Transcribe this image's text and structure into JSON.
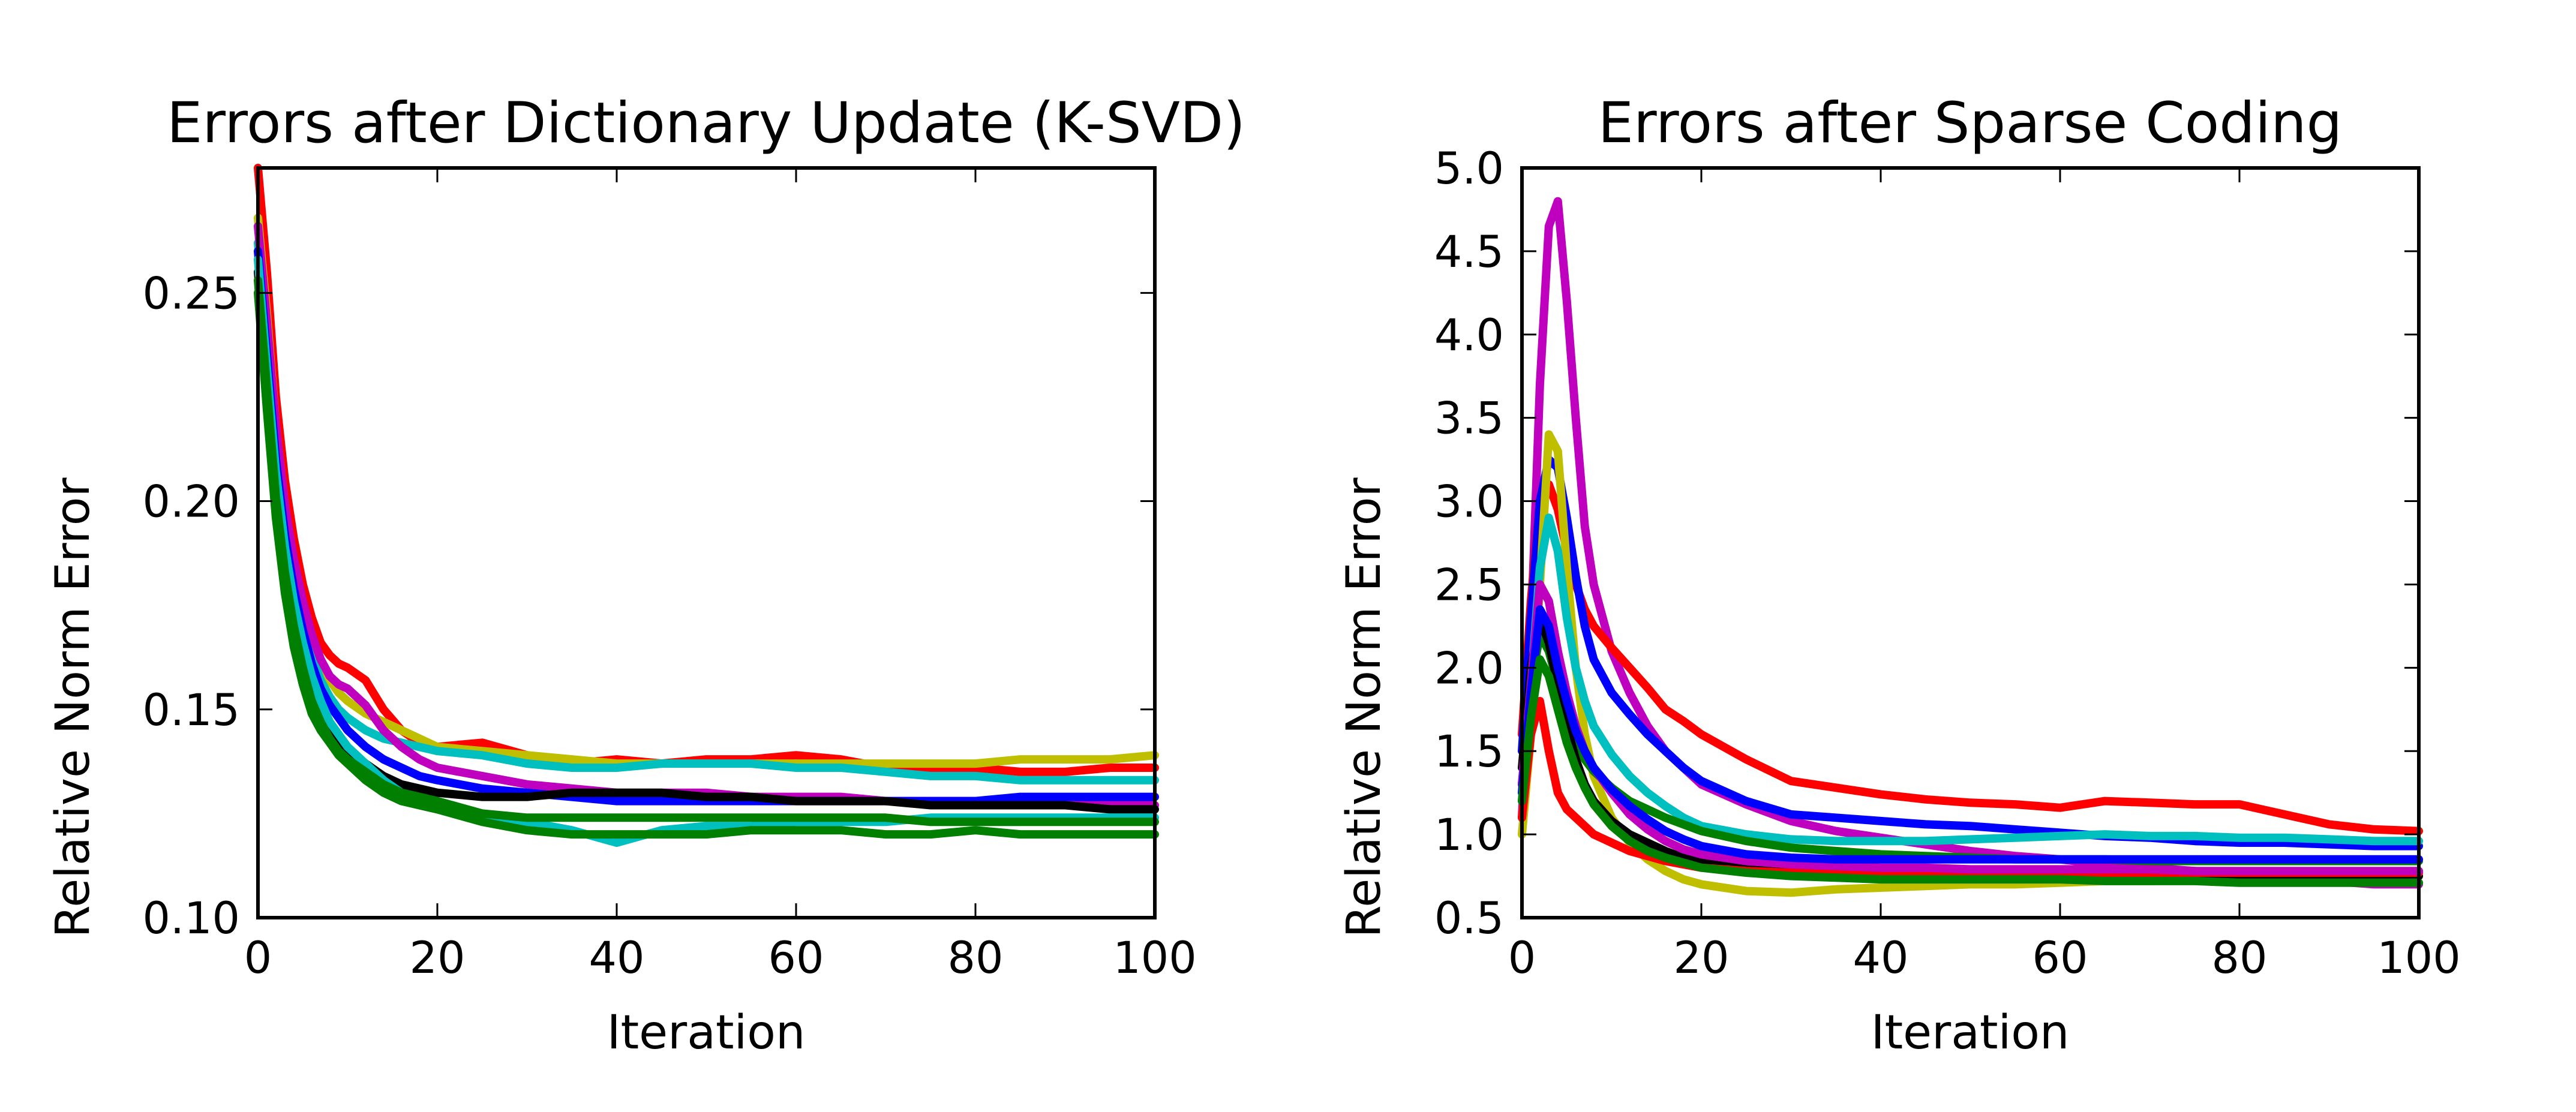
{
  "chart_data": [
    {
      "type": "line",
      "title": "Errors after Dictionary Update (K-SVD)",
      "xlabel": "Iteration",
      "ylabel": "Relative Norm Error",
      "xlim": [
        0,
        100
      ],
      "ylim": [
        0.1,
        0.28
      ],
      "xticks": [
        "0",
        "20",
        "40",
        "60",
        "80",
        "100"
      ],
      "yticks": [
        "0.10",
        "0.15",
        "0.20",
        "0.25"
      ],
      "grid": false,
      "x": [
        0,
        1,
        2,
        3,
        4,
        5,
        6,
        7,
        8,
        9,
        10,
        12,
        14,
        16,
        18,
        20,
        25,
        30,
        35,
        40,
        45,
        50,
        55,
        60,
        65,
        70,
        75,
        80,
        85,
        90,
        95,
        100
      ],
      "series": [
        {
          "color": "#ff0000",
          "values": [
            0.28,
            0.255,
            0.225,
            0.205,
            0.191,
            0.18,
            0.172,
            0.166,
            0.163,
            0.161,
            0.16,
            0.157,
            0.15,
            0.145,
            0.142,
            0.141,
            0.142,
            0.139,
            0.137,
            0.138,
            0.137,
            0.138,
            0.138,
            0.139,
            0.138,
            0.136,
            0.136,
            0.136,
            0.135,
            0.135,
            0.136,
            0.136
          ]
        },
        {
          "color": "#bfbf00",
          "values": [
            0.268,
            0.245,
            0.218,
            0.199,
            0.185,
            0.175,
            0.167,
            0.161,
            0.157,
            0.154,
            0.152,
            0.149,
            0.147,
            0.145,
            0.143,
            0.141,
            0.14,
            0.139,
            0.138,
            0.137,
            0.137,
            0.137,
            0.137,
            0.137,
            0.137,
            0.137,
            0.137,
            0.137,
            0.138,
            0.138,
            0.138,
            0.139
          ]
        },
        {
          "color": "#00bfbf",
          "values": [
            0.262,
            0.238,
            0.213,
            0.194,
            0.181,
            0.171,
            0.163,
            0.157,
            0.153,
            0.15,
            0.148,
            0.145,
            0.143,
            0.142,
            0.141,
            0.14,
            0.139,
            0.137,
            0.136,
            0.136,
            0.137,
            0.137,
            0.137,
            0.136,
            0.136,
            0.135,
            0.134,
            0.134,
            0.133,
            0.133,
            0.133,
            0.133
          ]
        },
        {
          "color": "#bf00bf",
          "values": [
            0.266,
            0.243,
            0.218,
            0.199,
            0.186,
            0.176,
            0.168,
            0.162,
            0.158,
            0.156,
            0.155,
            0.151,
            0.145,
            0.141,
            0.138,
            0.136,
            0.134,
            0.132,
            0.131,
            0.13,
            0.13,
            0.13,
            0.129,
            0.129,
            0.129,
            0.128,
            0.128,
            0.128,
            0.128,
            0.128,
            0.127,
            0.127
          ]
        },
        {
          "color": "#0000ff",
          "values": [
            0.26,
            0.235,
            0.21,
            0.192,
            0.179,
            0.169,
            0.161,
            0.155,
            0.151,
            0.148,
            0.145,
            0.141,
            0.138,
            0.136,
            0.134,
            0.133,
            0.131,
            0.13,
            0.129,
            0.128,
            0.128,
            0.128,
            0.128,
            0.128,
            0.128,
            0.128,
            0.128,
            0.128,
            0.129,
            0.129,
            0.129,
            0.129
          ]
        },
        {
          "color": "#000000",
          "values": [
            0.255,
            0.228,
            0.203,
            0.185,
            0.172,
            0.162,
            0.155,
            0.149,
            0.145,
            0.142,
            0.14,
            0.137,
            0.134,
            0.132,
            0.131,
            0.13,
            0.129,
            0.129,
            0.13,
            0.13,
            0.13,
            0.129,
            0.129,
            0.128,
            0.128,
            0.128,
            0.127,
            0.127,
            0.127,
            0.127,
            0.126,
            0.126
          ]
        },
        {
          "color": "#00bfbf",
          "values": [
            0.258,
            0.232,
            0.207,
            0.189,
            0.176,
            0.166,
            0.158,
            0.152,
            0.147,
            0.144,
            0.141,
            0.137,
            0.133,
            0.13,
            0.128,
            0.127,
            0.125,
            0.123,
            0.121,
            0.118,
            0.121,
            0.122,
            0.122,
            0.123,
            0.123,
            0.123,
            0.124,
            0.124,
            0.124,
            0.124,
            0.124,
            0.124
          ]
        },
        {
          "color": "#007f00",
          "values": [
            0.25,
            0.222,
            0.196,
            0.178,
            0.165,
            0.156,
            0.149,
            0.145,
            0.142,
            0.139,
            0.137,
            0.133,
            0.13,
            0.128,
            0.127,
            0.126,
            0.123,
            0.121,
            0.12,
            0.12,
            0.12,
            0.12,
            0.121,
            0.121,
            0.121,
            0.12,
            0.12,
            0.121,
            0.12,
            0.12,
            0.12,
            0.12
          ]
        },
        {
          "color": "#007f00",
          "values": [
            0.253,
            0.227,
            0.201,
            0.183,
            0.17,
            0.16,
            0.152,
            0.147,
            0.143,
            0.14,
            0.138,
            0.135,
            0.132,
            0.13,
            0.129,
            0.128,
            0.125,
            0.124,
            0.124,
            0.124,
            0.124,
            0.124,
            0.124,
            0.124,
            0.124,
            0.124,
            0.123,
            0.123,
            0.123,
            0.123,
            0.123,
            0.123
          ]
        }
      ]
    },
    {
      "type": "line",
      "title": "Errors after Sparse Coding",
      "xlabel": "Iteration",
      "ylabel": "Relative Norm Error",
      "xlim": [
        0,
        100
      ],
      "ylim": [
        0.5,
        5.0
      ],
      "xticks": [
        "0",
        "20",
        "40",
        "60",
        "80",
        "100"
      ],
      "yticks": [
        "0.5",
        "1.0",
        "1.5",
        "2.0",
        "2.5",
        "3.0",
        "3.5",
        "4.0",
        "4.5",
        "5.0"
      ],
      "grid": false,
      "x": [
        0,
        1,
        2,
        3,
        4,
        5,
        6,
        7,
        8,
        10,
        12,
        14,
        16,
        18,
        20,
        25,
        30,
        35,
        40,
        45,
        50,
        55,
        60,
        65,
        70,
        75,
        80,
        85,
        90,
        95,
        100
      ],
      "series": [
        {
          "color": "#bf00bf",
          "values": [
            1.1,
            2.2,
            3.7,
            4.65,
            4.8,
            4.2,
            3.5,
            2.85,
            2.5,
            2.1,
            1.85,
            1.65,
            1.5,
            1.4,
            1.3,
            1.18,
            1.08,
            1.02,
            0.98,
            0.94,
            0.9,
            0.87,
            0.85,
            0.82,
            0.8,
            0.78,
            0.76,
            0.74,
            0.72,
            0.7,
            0.7
          ]
        },
        {
          "color": "#ff0000",
          "values": [
            1.6,
            2.4,
            3.0,
            3.1,
            2.95,
            2.7,
            2.5,
            2.35,
            2.25,
            2.12,
            2.0,
            1.88,
            1.75,
            1.68,
            1.6,
            1.45,
            1.32,
            1.28,
            1.24,
            1.21,
            1.19,
            1.18,
            1.16,
            1.2,
            1.19,
            1.18,
            1.18,
            1.12,
            1.06,
            1.03,
            1.02
          ]
        },
        {
          "color": "#0000ff",
          "values": [
            1.5,
            2.3,
            3.0,
            3.25,
            3.2,
            2.9,
            2.55,
            2.25,
            2.05,
            1.85,
            1.72,
            1.6,
            1.5,
            1.4,
            1.32,
            1.2,
            1.12,
            1.1,
            1.08,
            1.06,
            1.05,
            1.03,
            1.01,
            0.99,
            0.98,
            0.96,
            0.95,
            0.95,
            0.94,
            0.93,
            0.93
          ]
        },
        {
          "color": "#bfbf00",
          "values": [
            1.0,
            1.6,
            2.5,
            3.4,
            3.3,
            2.6,
            2.0,
            1.6,
            1.35,
            1.1,
            0.95,
            0.85,
            0.78,
            0.73,
            0.7,
            0.66,
            0.65,
            0.67,
            0.68,
            0.69,
            0.7,
            0.7,
            0.71,
            0.72,
            0.72,
            0.73,
            0.73,
            0.73,
            0.74,
            0.74,
            0.75
          ]
        },
        {
          "color": "#00bfbf",
          "values": [
            1.2,
            1.9,
            2.6,
            2.9,
            2.7,
            2.3,
            2.0,
            1.8,
            1.65,
            1.48,
            1.35,
            1.25,
            1.17,
            1.1,
            1.05,
            1.0,
            0.97,
            0.96,
            0.96,
            0.96,
            0.97,
            0.98,
            0.99,
            1.0,
            0.99,
            0.99,
            0.98,
            0.98,
            0.97,
            0.96,
            0.96
          ]
        },
        {
          "color": "#007f00",
          "values": [
            1.3,
            1.9,
            2.2,
            2.1,
            1.9,
            1.7,
            1.55,
            1.45,
            1.38,
            1.28,
            1.2,
            1.15,
            1.1,
            1.06,
            1.02,
            0.96,
            0.92,
            0.9,
            0.88,
            0.87,
            0.86,
            0.85,
            0.85,
            0.85,
            0.84,
            0.84,
            0.84,
            0.84,
            0.84,
            0.84,
            0.84
          ]
        },
        {
          "color": "#000000",
          "values": [
            1.4,
            2.0,
            2.3,
            2.15,
            1.9,
            1.65,
            1.45,
            1.3,
            1.2,
            1.08,
            1.0,
            0.95,
            0.9,
            0.86,
            0.83,
            0.79,
            0.77,
            0.76,
            0.75,
            0.75,
            0.75,
            0.75,
            0.75,
            0.75,
            0.75,
            0.75,
            0.75,
            0.75,
            0.75,
            0.75,
            0.75
          ]
        },
        {
          "color": "#ff0000",
          "values": [
            1.1,
            1.6,
            1.8,
            1.5,
            1.25,
            1.15,
            1.1,
            1.05,
            1.0,
            0.95,
            0.9,
            0.87,
            0.84,
            0.82,
            0.8,
            0.78,
            0.77,
            0.77,
            0.77,
            0.77,
            0.77,
            0.77,
            0.77,
            0.77,
            0.77,
            0.77,
            0.77,
            0.77,
            0.77,
            0.77,
            0.77
          ]
        },
        {
          "color": "#bf00bf",
          "values": [
            1.3,
            1.9,
            2.5,
            2.4,
            2.1,
            1.85,
            1.65,
            1.5,
            1.4,
            1.25,
            1.12,
            1.03,
            0.96,
            0.91,
            0.88,
            0.84,
            0.82,
            0.81,
            0.8,
            0.8,
            0.79,
            0.79,
            0.79,
            0.79,
            0.79,
            0.78,
            0.78,
            0.78,
            0.78,
            0.78,
            0.78
          ]
        },
        {
          "color": "#0000ff",
          "values": [
            1.25,
            1.85,
            2.35,
            2.25,
            2.0,
            1.8,
            1.62,
            1.5,
            1.4,
            1.27,
            1.17,
            1.09,
            1.02,
            0.97,
            0.93,
            0.88,
            0.86,
            0.85,
            0.85,
            0.85,
            0.85,
            0.85,
            0.85,
            0.85,
            0.85,
            0.85,
            0.85,
            0.85,
            0.85,
            0.85,
            0.85
          ]
        },
        {
          "color": "#007f00",
          "values": [
            1.2,
            1.7,
            2.05,
            1.95,
            1.75,
            1.55,
            1.4,
            1.28,
            1.18,
            1.05,
            0.96,
            0.9,
            0.86,
            0.83,
            0.8,
            0.77,
            0.75,
            0.74,
            0.73,
            0.73,
            0.73,
            0.73,
            0.73,
            0.72,
            0.72,
            0.72,
            0.71,
            0.71,
            0.71,
            0.71,
            0.71
          ]
        }
      ]
    }
  ]
}
